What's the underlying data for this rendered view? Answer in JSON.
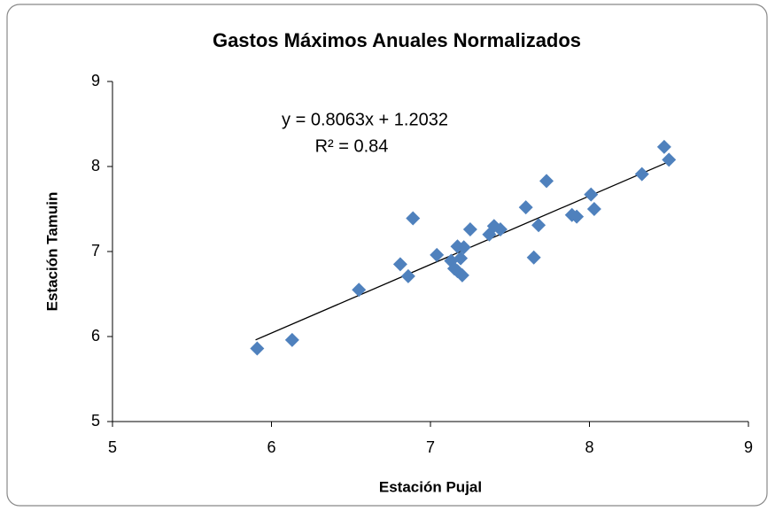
{
  "chart_data": {
    "type": "scatter",
    "title": "Gastos Máximos Anuales Normalizados",
    "xlabel": "Estación Pujal",
    "ylabel": "Estación Tamuin",
    "xlim": [
      5,
      9
    ],
    "xticks": [
      5,
      6,
      7,
      8,
      9
    ],
    "ylim": [
      5,
      9
    ],
    "yticks": [
      5,
      6,
      7,
      8,
      9
    ],
    "series": [
      {
        "color": "#4f81bd",
        "x": [
          5.91,
          6.13,
          6.55,
          6.81,
          6.86,
          6.89,
          7.04,
          7.13,
          7.15,
          7.17,
          7.17,
          7.19,
          7.2,
          7.21,
          7.25,
          7.37,
          7.4,
          7.44,
          7.6,
          7.65,
          7.68,
          7.73,
          7.89,
          7.92,
          8.01,
          8.03,
          8.33,
          8.47,
          8.5
        ],
        "values": [
          5.86,
          5.96,
          6.55,
          6.85,
          6.71,
          7.39,
          6.96,
          6.89,
          6.8,
          7.06,
          6.77,
          6.92,
          6.72,
          7.05,
          7.26,
          7.2,
          7.3,
          7.26,
          7.52,
          6.93,
          7.31,
          7.83,
          7.43,
          7.41,
          7.67,
          7.5,
          7.91,
          8.23,
          8.08
        ]
      }
    ],
    "trendline": {
      "slope": 0.8063,
      "intercept": 1.2032,
      "x": [
        5.9,
        8.5
      ],
      "color": "#000000"
    },
    "annotations": [
      "y = 0.8063x + 1.2032",
      "R² = 0.84"
    ]
  }
}
